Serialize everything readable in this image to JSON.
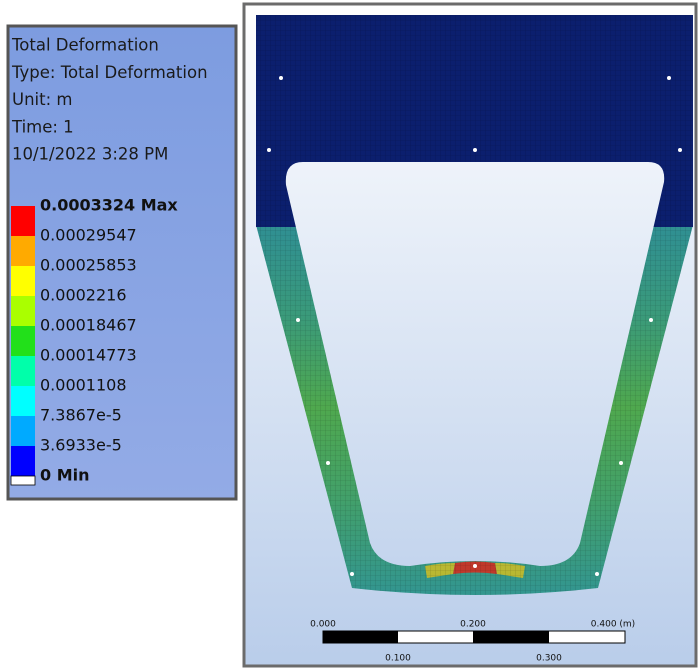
{
  "legend": {
    "header": [
      "Total Deformation",
      "Type: Total Deformation",
      "Unit: m",
      "Time: 1",
      "10/1/2022 3:28 PM"
    ],
    "levels": [
      "0.0003324 Max",
      "0.00029547",
      "0.00025853",
      "0.0002216",
      "0.00018467",
      "0.00014773",
      "0.0001108",
      "7.3867e-5",
      "3.6933e-5",
      "0 Min"
    ],
    "colors": [
      "#ff0000",
      "#ffaa00",
      "#ffff00",
      "#aaff00",
      "#22e01a",
      "#00ffaa",
      "#00ffff",
      "#00aaff",
      "#0000ff"
    ]
  },
  "scale_bar": {
    "top_labels": [
      "0.000",
      "0.200",
      "0.400 (m)"
    ],
    "bottom_labels": [
      "0.100",
      "0.300"
    ]
  }
}
